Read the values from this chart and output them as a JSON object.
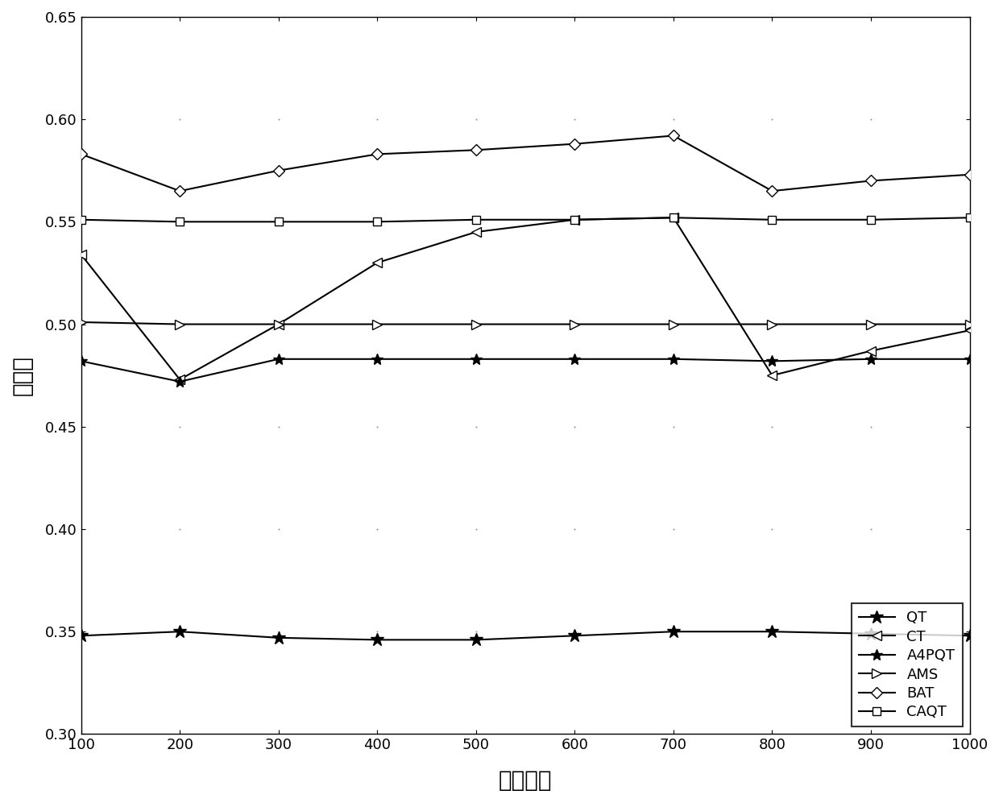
{
  "x": [
    100,
    200,
    300,
    400,
    500,
    600,
    700,
    800,
    900,
    1000
  ],
  "QT": [
    0.348,
    0.35,
    0.347,
    0.346,
    0.346,
    0.348,
    0.35,
    0.35,
    0.349,
    0.348
  ],
  "CT": [
    0.534,
    0.473,
    0.5,
    0.53,
    0.545,
    0.551,
    0.552,
    0.475,
    0.487,
    0.497
  ],
  "A4PQT": [
    0.482,
    0.472,
    0.483,
    0.483,
    0.483,
    0.483,
    0.483,
    0.482,
    0.483,
    0.483
  ],
  "AMS": [
    0.501,
    0.5,
    0.5,
    0.5,
    0.5,
    0.5,
    0.5,
    0.5,
    0.5,
    0.5
  ],
  "BAT": [
    0.583,
    0.565,
    0.575,
    0.583,
    0.585,
    0.588,
    0.592,
    0.565,
    0.57,
    0.573
  ],
  "CAQT": [
    0.551,
    0.55,
    0.55,
    0.55,
    0.551,
    0.551,
    0.552,
    0.551,
    0.551,
    0.552
  ],
  "xlabel": "标签数量",
  "ylabel": "吞吐量",
  "xlim": [
    100,
    1000
  ],
  "ylim": [
    0.3,
    0.65
  ],
  "yticks": [
    0.3,
    0.35,
    0.4,
    0.45,
    0.5,
    0.55,
    0.6,
    0.65
  ],
  "xticks": [
    100,
    200,
    300,
    400,
    500,
    600,
    700,
    800,
    900,
    1000
  ],
  "legend_loc": "lower right",
  "line_color": "#000000",
  "figsize": [
    12.4,
    9.97
  ],
  "dpi": 100
}
